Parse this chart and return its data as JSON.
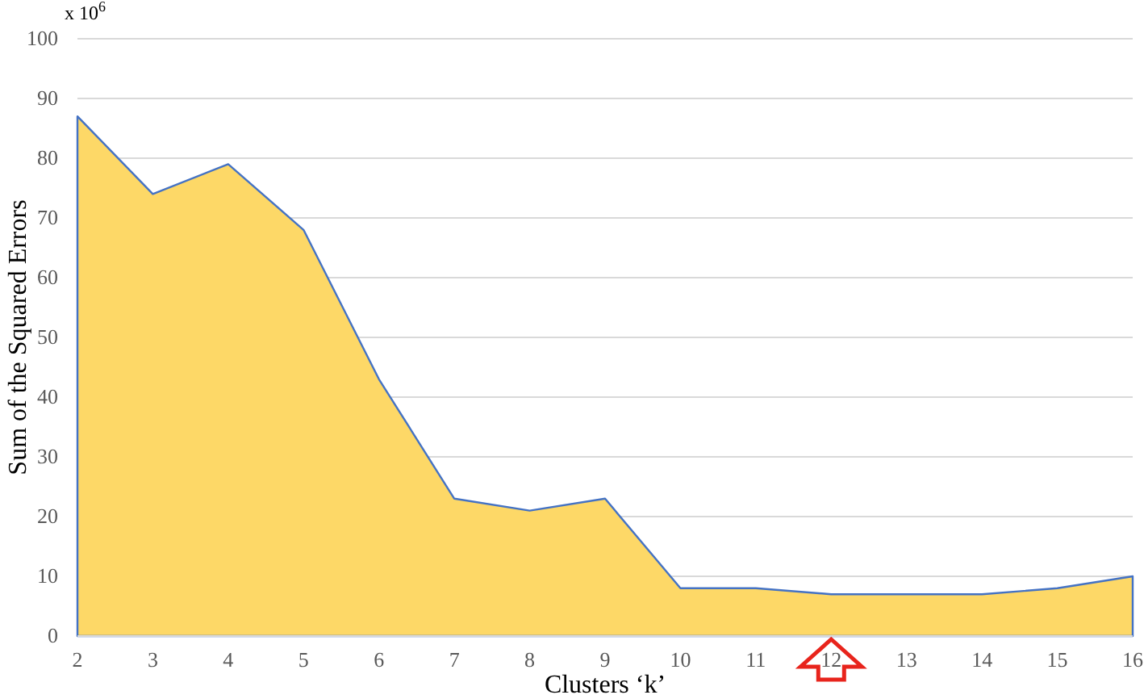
{
  "chart_data": {
    "type": "area",
    "xlabel": "Clusters ‘k’",
    "ylabel": "Sum of the Squared Errors",
    "annotations": [
      "x 10$^{6}$"
    ],
    "x": [
      2,
      3,
      4,
      5,
      6,
      7,
      8,
      9,
      10,
      11,
      12,
      13,
      14,
      15,
      16
    ],
    "series": [
      {
        "color": "#fdd867",
        "values": [
          87,
          74,
          79,
          68,
          43,
          23,
          21,
          23,
          8,
          8,
          7,
          7,
          7,
          8,
          10
        ]
      }
    ],
    "xlim": [
      2,
      16
    ],
    "xticks": [
      2,
      3,
      4,
      5,
      6,
      7,
      8,
      9,
      10,
      11,
      12,
      13,
      14,
      15,
      16
    ],
    "ylim": [
      0,
      100
    ],
    "yticks": [
      0,
      10,
      20,
      30,
      40,
      50,
      60,
      70,
      80,
      90,
      100
    ],
    "grid": "y"
  }
}
